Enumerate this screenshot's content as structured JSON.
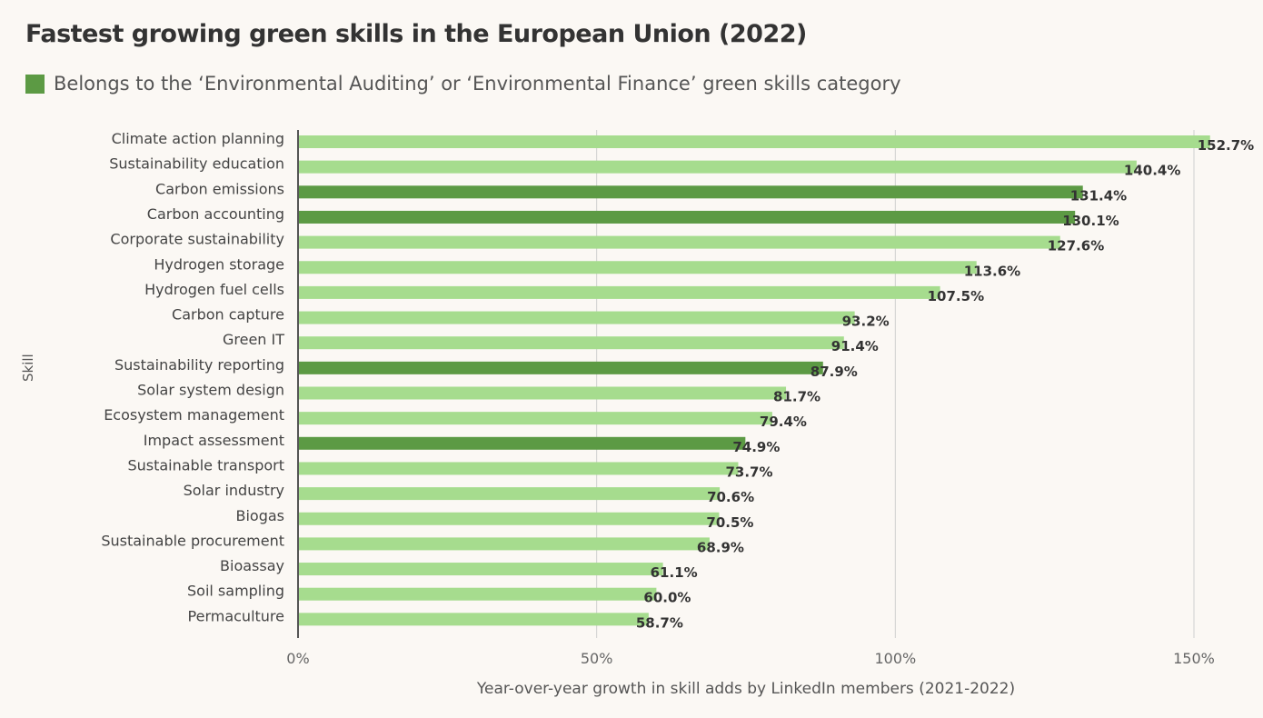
{
  "chart_data": {
    "type": "bar",
    "orientation": "horizontal",
    "title": "Fastest growing green skills in the European Union (2022)",
    "legend": {
      "label": "Belongs to the ‘Environmental Auditing’ or ‘Environmental Finance’ green skills category",
      "color": "#5c9a44",
      "placement": "top-left"
    },
    "xlabel": "Year-over-year growth in skill adds by LinkedIn members (2021-2022)",
    "ylabel": "Skill",
    "xlim": [
      0,
      150
    ],
    "xticks": [
      0,
      50,
      100,
      150
    ],
    "xtick_labels": [
      "0%",
      "50%",
      "100%",
      "150%"
    ],
    "grid": true,
    "colors": {
      "default": "#a6dc8e",
      "highlight": "#5c9a44"
    },
    "categories": [
      "Climate action planning",
      "Sustainability education",
      "Carbon emissions",
      "Carbon accounting",
      "Corporate sustainability",
      "Hydrogen storage",
      "Hydrogen fuel cells",
      "Carbon capture",
      "Green IT",
      "Sustainability reporting",
      "Solar system design",
      "Ecosystem management",
      "Impact assessment",
      "Sustainable transport",
      "Solar industry",
      "Biogas",
      "Sustainable procurement",
      "Bioassay",
      "Soil sampling",
      "Permaculture"
    ],
    "values": [
      152.7,
      140.4,
      131.4,
      130.1,
      127.6,
      113.6,
      107.5,
      93.2,
      91.4,
      87.9,
      81.7,
      79.4,
      74.9,
      73.7,
      70.6,
      70.5,
      68.9,
      61.1,
      60.0,
      58.7
    ],
    "value_labels": [
      "152.7%",
      "140.4%",
      "131.4%",
      "130.1%",
      "127.6%",
      "113.6%",
      "107.5%",
      "93.2%",
      "91.4%",
      "87.9%",
      "81.7%",
      "79.4%",
      "74.9%",
      "73.7%",
      "70.6%",
      "70.5%",
      "68.9%",
      "61.1%",
      "60.0%",
      "58.7%"
    ],
    "highlighted": [
      false,
      false,
      true,
      true,
      false,
      false,
      false,
      false,
      false,
      true,
      false,
      false,
      true,
      false,
      false,
      false,
      false,
      false,
      false,
      false
    ]
  }
}
